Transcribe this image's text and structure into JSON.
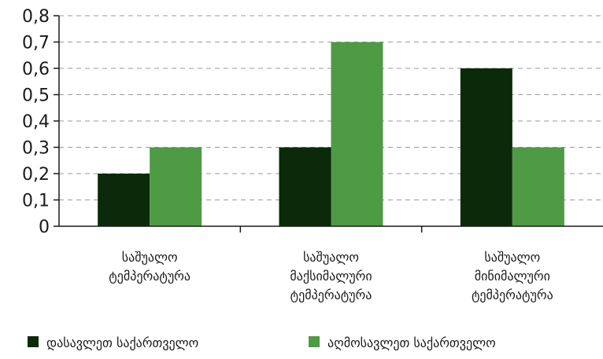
{
  "chart_data": {
    "type": "bar",
    "title": "",
    "xlabel": "",
    "ylabel": "",
    "ylim": [
      0,
      0.8
    ],
    "ytick_step": 0.1,
    "ytick_decimal": ",",
    "grid": "horizontal-dashed",
    "legend_position": "bottom",
    "categories": [
      [
        "საშუალო",
        "ტემპერატურა"
      ],
      [
        "საშუალო",
        "მაქსიმალური",
        "ტემპერატურა"
      ],
      [
        "საშუალო",
        "მინიმალური",
        "ტემპერატურა"
      ]
    ],
    "series": [
      {
        "name": "დასავლეთ საქართველო",
        "color": "#0a2a0a",
        "values": [
          0.2,
          0.3,
          0.6
        ]
      },
      {
        "name": "აღმოსავლეთ საქართველო",
        "color": "#4f9a45",
        "values": [
          0.3,
          0.7,
          0.3
        ]
      }
    ]
  }
}
